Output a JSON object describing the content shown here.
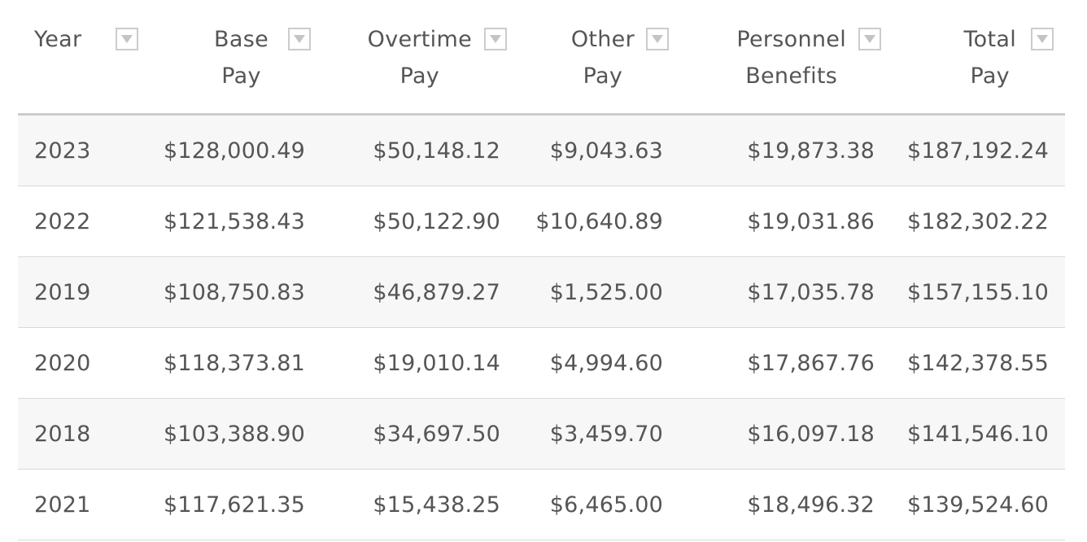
{
  "table": {
    "columns": [
      {
        "line1": "Year",
        "line2": ""
      },
      {
        "line1": "Base",
        "line2": "Pay"
      },
      {
        "line1": "Overtime",
        "line2": "Pay"
      },
      {
        "line1": "Other",
        "line2": "Pay"
      },
      {
        "line1": "Personnel",
        "line2": "Benefits"
      },
      {
        "line1": "Total",
        "line2": "Pay"
      }
    ],
    "sort_icon": "chevron-down-icon",
    "rows": [
      [
        "2023",
        "$128,000.49",
        "$50,148.12",
        "$9,043.63",
        "$19,873.38",
        "$187,192.24"
      ],
      [
        "2022",
        "$121,538.43",
        "$50,122.90",
        "$10,640.89",
        "$19,031.86",
        "$182,302.22"
      ],
      [
        "2019",
        "$108,750.83",
        "$46,879.27",
        "$1,525.00",
        "$17,035.78",
        "$157,155.10"
      ],
      [
        "2020",
        "$118,373.81",
        "$19,010.14",
        "$4,994.60",
        "$17,867.76",
        "$142,378.55"
      ],
      [
        "2018",
        "$103,388.90",
        "$34,697.50",
        "$3,459.70",
        "$16,097.18",
        "$141,546.10"
      ],
      [
        "2021",
        "$117,621.35",
        "$15,438.25",
        "$6,465.00",
        "$18,496.32",
        "$139,524.60"
      ]
    ]
  },
  "colors": {
    "text": "#555555",
    "row_stripe": "#f7f7f7",
    "header_rule": "#cccccc",
    "row_rule": "#d8d8d8"
  }
}
